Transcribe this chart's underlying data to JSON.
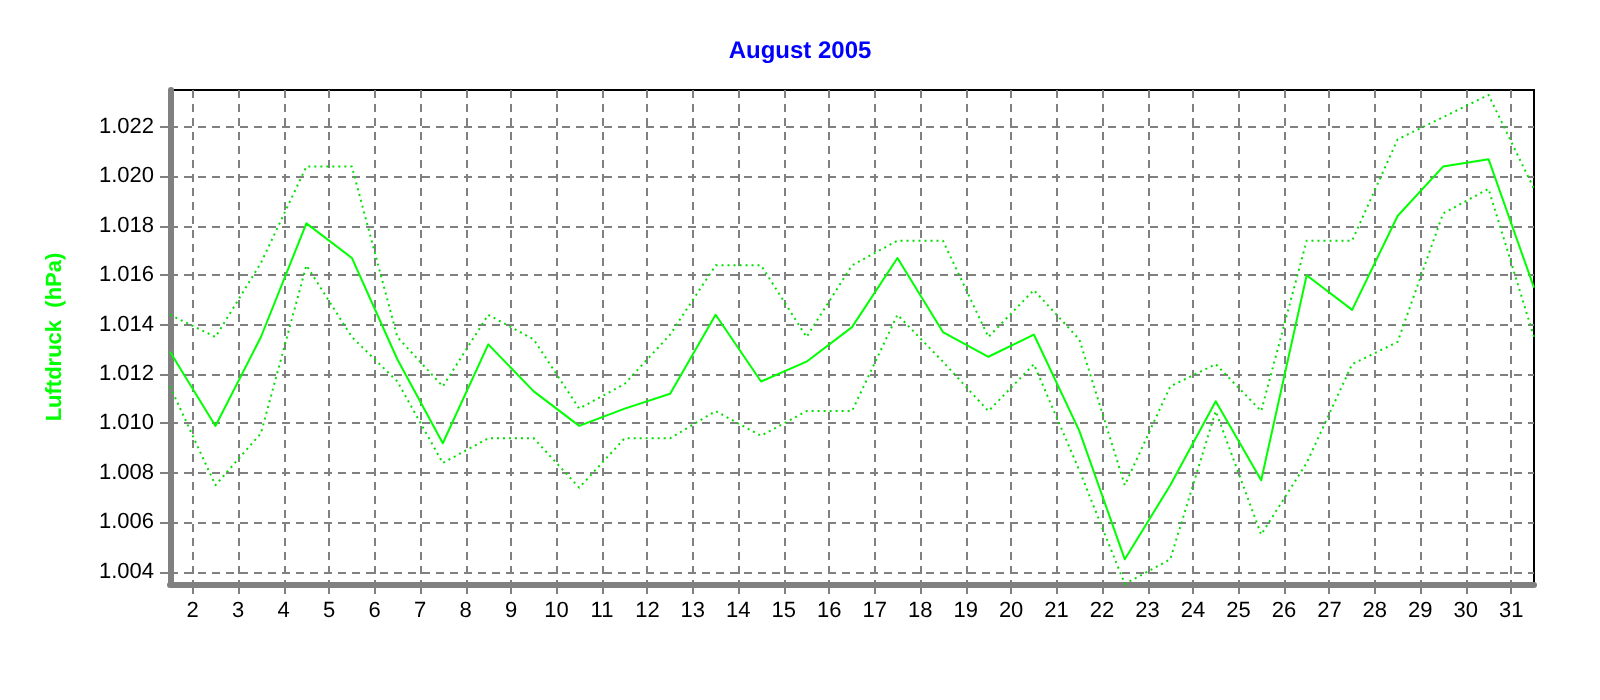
{
  "chart_data": {
    "type": "line",
    "title": "August 2005",
    "ylabel": "Luftdruck  (hPa)",
    "x": [
      1.5,
      2.5,
      3.5,
      4.5,
      5.5,
      6.5,
      7.5,
      8.5,
      9.5,
      10.5,
      11.5,
      12.5,
      13.5,
      14.5,
      15.5,
      16.5,
      17.5,
      18.5,
      19.5,
      20.5,
      21.5,
      22.5,
      23.5,
      24.5,
      25.5,
      26.5,
      27.5,
      28.5,
      29.5,
      30.5,
      31.5
    ],
    "xlim": [
      1.5,
      31.5
    ],
    "xticks": [
      2,
      3,
      4,
      5,
      6,
      7,
      8,
      9,
      10,
      11,
      12,
      13,
      14,
      15,
      16,
      17,
      18,
      19,
      20,
      21,
      22,
      23,
      24,
      25,
      26,
      27,
      28,
      29,
      30,
      31
    ],
    "ylim": [
      1.0035,
      1.0235
    ],
    "yticks": [
      1.004,
      1.006,
      1.008,
      {
        "value": 1.01,
        "label": "1.010"
      },
      1.012,
      1.014,
      1.016,
      1.018,
      {
        "value": 1.02,
        "label": "1.020"
      },
      1.022
    ],
    "grid": true,
    "marker": "none",
    "series": [
      {
        "color": "#00e000",
        "line_style": "dotted",
        "values": [
          1.0144,
          1.0135,
          1.0165,
          1.0204,
          1.0204,
          1.0135,
          1.0115,
          1.0144,
          1.0134,
          1.0106,
          1.0116,
          1.0136,
          1.0164,
          1.0164,
          1.0135,
          1.0164,
          1.0174,
          1.0174,
          1.0135,
          1.0154,
          1.0134,
          1.0075,
          1.0115,
          1.0124,
          1.0105,
          1.0174,
          1.0174,
          1.0215,
          1.0224,
          1.0233,
          1.0195
        ]
      },
      {
        "color": "#00ff00",
        "line_style": "solid",
        "values": [
          1.0129,
          1.0099,
          1.0135,
          1.0181,
          1.0167,
          1.0126,
          1.0092,
          1.0132,
          1.0113,
          1.0099,
          1.0106,
          1.0112,
          1.0144,
          1.0117,
          1.0125,
          1.0139,
          1.0167,
          1.0137,
          1.0127,
          1.0136,
          1.0097,
          1.0045,
          1.0075,
          1.0109,
          1.0077,
          1.016,
          1.0146,
          1.0184,
          1.0204,
          1.0207,
          1.0155
        ]
      },
      {
        "color": "#00e000",
        "line_style": "dotted",
        "values": [
          1.0115,
          1.0075,
          1.0096,
          1.0164,
          1.0135,
          1.0117,
          1.0084,
          1.0094,
          1.0094,
          1.0074,
          1.0094,
          1.0094,
          1.0105,
          1.0095,
          1.0105,
          1.0105,
          1.0144,
          1.0125,
          1.0105,
          1.0124,
          1.0081,
          1.0035,
          1.0045,
          1.0105,
          1.0055,
          1.0084,
          1.0124,
          1.0133,
          1.0185,
          1.0195,
          1.0135
        ]
      }
    ]
  }
}
